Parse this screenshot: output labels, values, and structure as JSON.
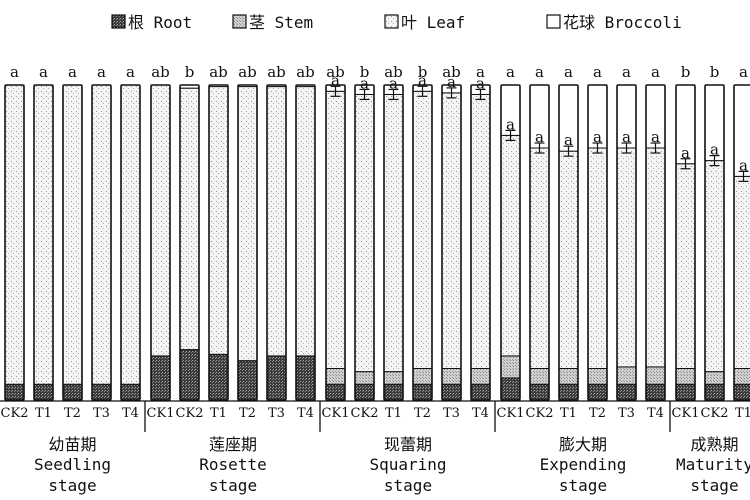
{
  "chart_data": {
    "type": "bar",
    "stacked": true,
    "unit": "percent",
    "ylim": [
      0,
      100
    ],
    "title": "",
    "xlabel": "",
    "ylabel": "",
    "legend": {
      "position": "top",
      "entries": [
        {
          "key": "root",
          "label": "根 Root"
        },
        {
          "key": "stem",
          "label": "茎 Stem"
        },
        {
          "key": "leaf",
          "label": "叶 Leaf"
        },
        {
          "key": "broccoli",
          "label": "花球 Broccoli"
        }
      ]
    },
    "stages": [
      {
        "zh": "幼苗期",
        "en": "Seedling",
        "en2": "stage",
        "bars": [
          {
            "label": "CK2",
            "root": 5,
            "stem": 0,
            "broccoli": 0,
            "sig": "a",
            "sig2": ""
          },
          {
            "label": "T1",
            "root": 5,
            "stem": 0,
            "broccoli": 0,
            "sig": "a",
            "sig2": ""
          },
          {
            "label": "T2",
            "root": 5,
            "stem": 0,
            "broccoli": 0,
            "sig": "a",
            "sig2": ""
          },
          {
            "label": "T3",
            "root": 5,
            "stem": 0,
            "broccoli": 0,
            "sig": "a",
            "sig2": ""
          },
          {
            "label": "T4",
            "root": 5,
            "stem": 0,
            "broccoli": 0,
            "sig": "a",
            "sig2": ""
          }
        ]
      },
      {
        "zh": "莲座期",
        "en": "Rosette",
        "en2": "stage",
        "bars": [
          {
            "label": "CK1",
            "root": 14,
            "stem": 0,
            "broccoli": 0,
            "sig": "ab",
            "sig2": ""
          },
          {
            "label": "CK2",
            "root": 16,
            "stem": 0,
            "broccoli": 1,
            "sig": "b",
            "sig2": ""
          },
          {
            "label": "T1",
            "root": 14.5,
            "stem": 0,
            "broccoli": 0.5,
            "sig": "ab",
            "sig2": ""
          },
          {
            "label": "T2",
            "root": 12.5,
            "stem": 0,
            "broccoli": 0.5,
            "sig": "ab",
            "sig2": ""
          },
          {
            "label": "T3",
            "root": 14,
            "stem": 0,
            "broccoli": 0.5,
            "sig": "ab",
            "sig2": ""
          },
          {
            "label": "T4",
            "root": 14,
            "stem": 0,
            "broccoli": 0.5,
            "sig": "ab",
            "sig2": ""
          }
        ]
      },
      {
        "zh": "现蕾期",
        "en": "Squaring",
        "en2": "stage",
        "bars": [
          {
            "label": "CK1",
            "root": 5,
            "stem": 5,
            "broccoli": 2,
            "sig": "ab",
            "sig2": "a"
          },
          {
            "label": "CK2",
            "root": 5,
            "stem": 4,
            "broccoli": 3,
            "sig": "b",
            "sig2": "a"
          },
          {
            "label": "T1",
            "root": 5,
            "stem": 4,
            "broccoli": 3,
            "sig": "ab",
            "sig2": "a"
          },
          {
            "label": "T2",
            "root": 5,
            "stem": 5,
            "broccoli": 2,
            "sig": "b",
            "sig2": "a"
          },
          {
            "label": "T3",
            "root": 5,
            "stem": 5,
            "broccoli": 2.5,
            "sig": "ab",
            "sig2": "a"
          },
          {
            "label": "T4",
            "root": 5,
            "stem": 5,
            "broccoli": 3,
            "sig": "a",
            "sig2": "a"
          }
        ]
      },
      {
        "zh": "膨大期",
        "en": "Expending",
        "en2": "stage",
        "bars": [
          {
            "label": "CK1",
            "root": 7,
            "stem": 7,
            "broccoli": 16,
            "sig": "a",
            "sig2": "a"
          },
          {
            "label": "CK2",
            "root": 5,
            "stem": 5,
            "broccoli": 20,
            "sig": "a",
            "sig2": "a"
          },
          {
            "label": "T1",
            "root": 5,
            "stem": 5,
            "broccoli": 21,
            "sig": "a",
            "sig2": "a"
          },
          {
            "label": "T2",
            "root": 5,
            "stem": 5,
            "broccoli": 20,
            "sig": "a",
            "sig2": "a"
          },
          {
            "label": "T3",
            "root": 5,
            "stem": 5.5,
            "broccoli": 20,
            "sig": "a",
            "sig2": "a"
          },
          {
            "label": "T4",
            "root": 5,
            "stem": 5.5,
            "broccoli": 20,
            "sig": "a",
            "sig2": "a"
          }
        ]
      },
      {
        "zh": "成熟期",
        "en": "Maturity",
        "en2": "stage",
        "bars": [
          {
            "label": "CK1",
            "root": 5,
            "stem": 5,
            "broccoli": 25,
            "sig": "b",
            "sig2": "a"
          },
          {
            "label": "CK2",
            "root": 5,
            "stem": 4,
            "broccoli": 24,
            "sig": "b",
            "sig2": "a"
          },
          {
            "label": "T1",
            "root": 5,
            "stem": 5,
            "broccoli": 29,
            "sig": "a",
            "sig2": "a"
          }
        ]
      }
    ]
  }
}
